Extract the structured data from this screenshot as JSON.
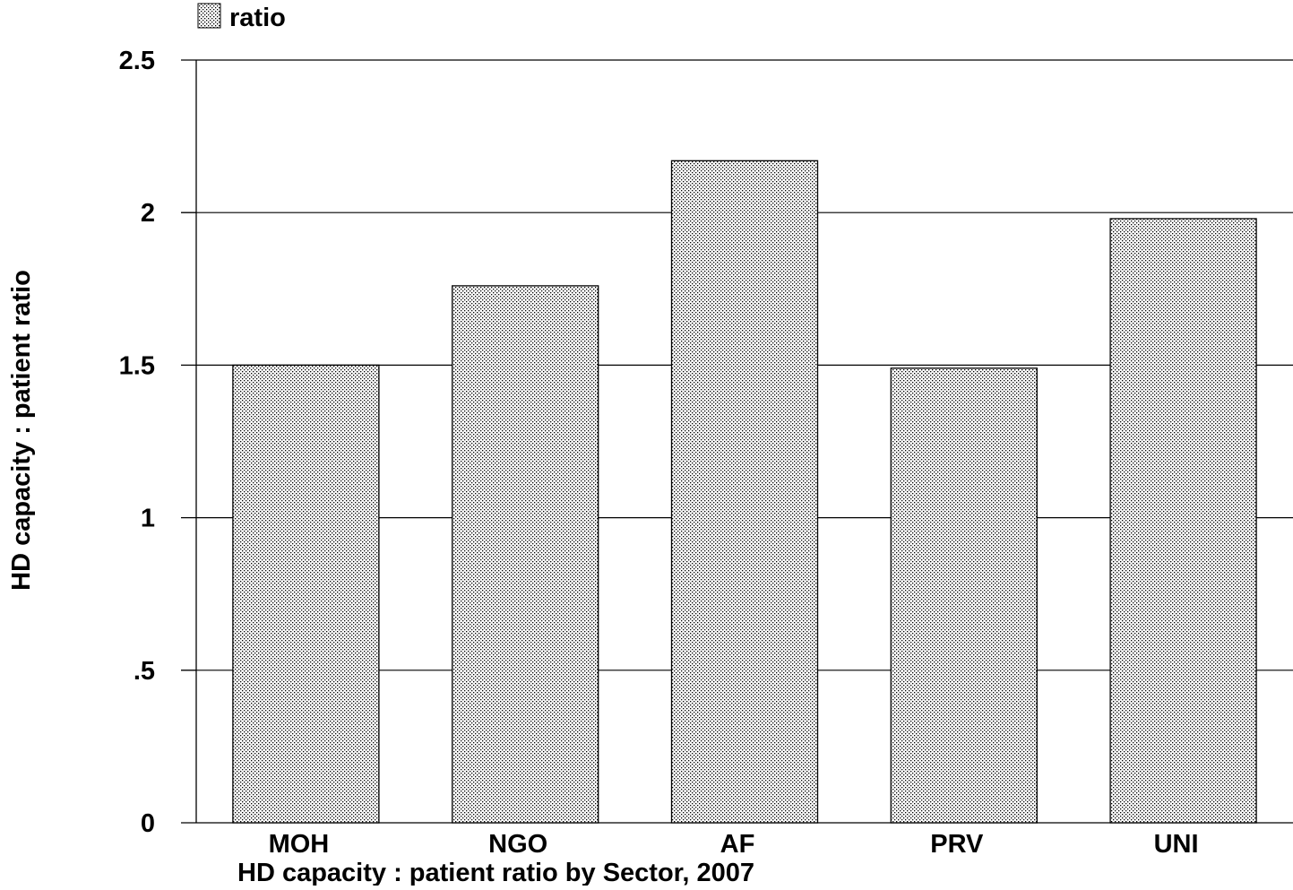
{
  "chart_data": {
    "type": "bar",
    "title": "",
    "xlabel": "HD capacity : patient ratio by Sector, 2007",
    "ylabel": "HD capacity : patient ratio",
    "categories": [
      "MOH",
      "NGO",
      "AF",
      "PRV",
      "UNI"
    ],
    "series": [
      {
        "name": "ratio",
        "values": [
          1.5,
          1.76,
          2.17,
          1.49,
          1.98
        ]
      }
    ],
    "ylim": [
      0,
      2.5
    ],
    "yticks": [
      0,
      0.5,
      1,
      1.5,
      2,
      2.5
    ],
    "ytick_labels": [
      "0",
      ".5",
      "1",
      "1.5",
      "2",
      "2.5"
    ],
    "grid": true,
    "legend_position": "top-left",
    "bar_fill": "dotted-pattern",
    "colors": {
      "bar_background": "#ffffff",
      "bar_dots": "#000000",
      "bar_outline": "#000000",
      "gridline": "#000000",
      "text": "#000000"
    }
  }
}
